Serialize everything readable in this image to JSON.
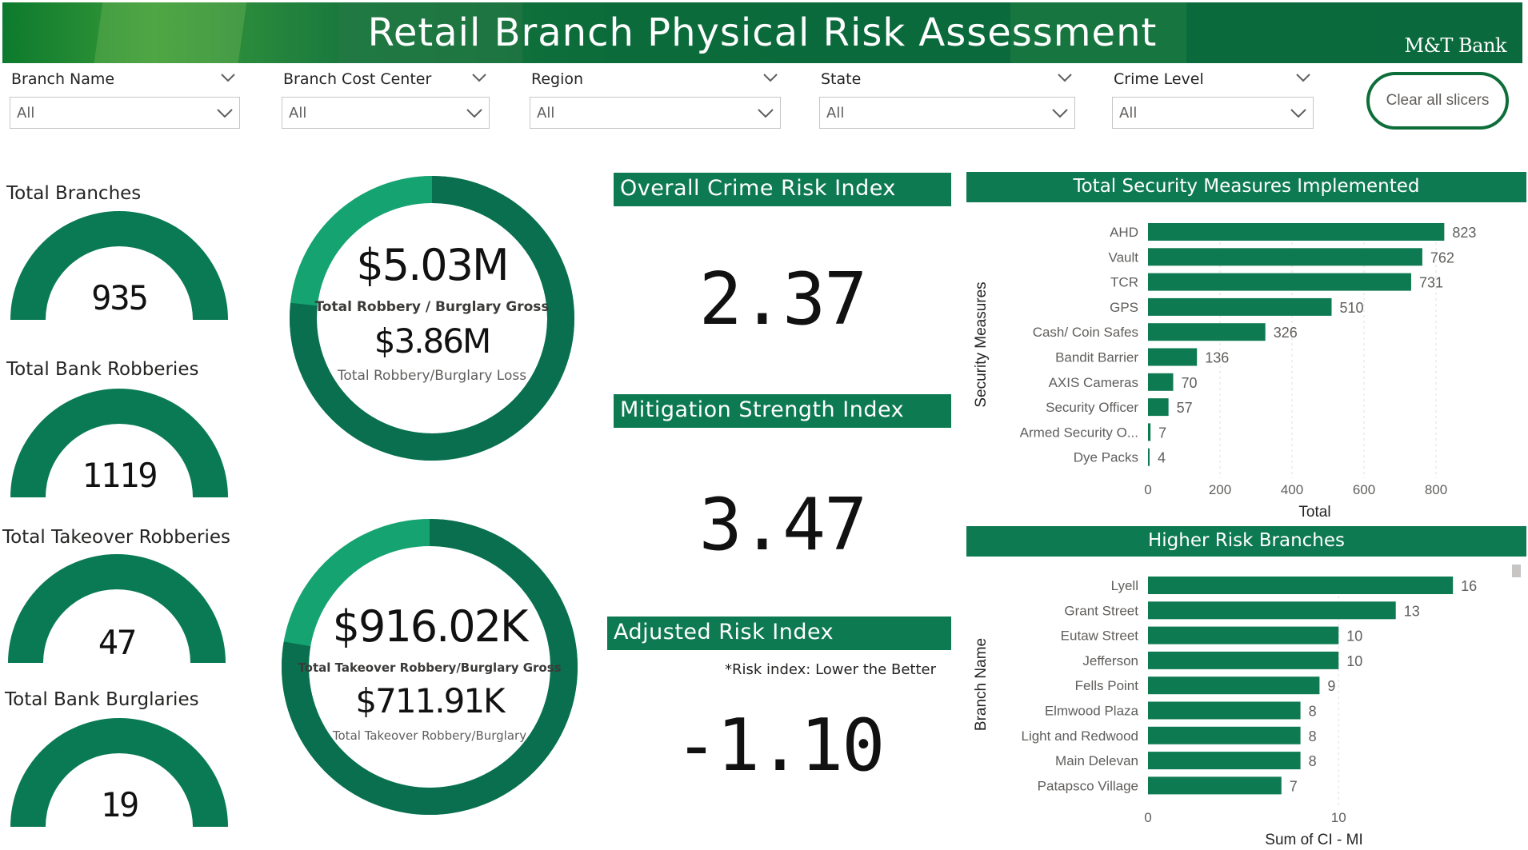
{
  "header": {
    "title": "Retail Branch Physical Risk Assessment",
    "logo_text": "M&T Bank"
  },
  "slicers": [
    {
      "label": "Branch Name",
      "value": "All"
    },
    {
      "label": "Branch Cost Center",
      "value": "All"
    },
    {
      "label": "Region",
      "value": "All"
    },
    {
      "label": "State",
      "value": "All"
    },
    {
      "label": "Crime Level",
      "value": "All"
    }
  ],
  "clear_button": {
    "label": "Clear all slicers"
  },
  "kpis": [
    {
      "label": "Total Branches",
      "value": "935"
    },
    {
      "label": "Total Bank Robberies",
      "value": "1119"
    },
    {
      "label": "Total Takeover Robberies",
      "value": "47"
    },
    {
      "label": "Total Bank Burglaries",
      "value": "19"
    }
  ],
  "donut1": {
    "gross_value": "$5.03M",
    "gross_label": "Total Robbery / Burglary Gross",
    "loss_value": "$3.86M",
    "loss_label": "Total Robbery/Burglary Loss",
    "loss_fraction": 0.767
  },
  "donut2": {
    "gross_value": "$916.02K",
    "gross_label": "Total Takeover Robbery/Burglary Gross",
    "loss_value": "$711.91K",
    "loss_label": "Total Takeover Robbery/Burglary",
    "loss_fraction": 0.777
  },
  "indices": [
    {
      "title": "Overall Crime Risk Index",
      "value": "2.37"
    },
    {
      "title": "Mitigation Strength Index",
      "value": "3.47"
    },
    {
      "title": "Adjusted Risk Index",
      "value": "-1.10"
    }
  ],
  "risk_note": "*Risk index: Lower the Better",
  "colors": {
    "primary": "#0e7a52",
    "dark": "#0a6a4a",
    "light": "#15a372",
    "header_green": "#0c6b3c"
  },
  "chart_data": [
    {
      "type": "bar",
      "orientation": "horizontal",
      "title": "Total Security Measures Implemented",
      "ylabel": "Security Measures",
      "xlabel": "Total",
      "categories": [
        "AHD",
        "Vault",
        "TCR",
        "GPS",
        "Cash/ Coin Safes",
        "Bandit Barrier",
        "AXIS Cameras",
        "Security Officer",
        "Armed Security O...",
        "Dye Packs"
      ],
      "values": [
        823,
        762,
        731,
        510,
        326,
        136,
        70,
        57,
        7,
        4
      ],
      "xlim": [
        0,
        900
      ],
      "xticks": [
        "0",
        "200",
        "400",
        "600",
        "800"
      ],
      "grid": true
    },
    {
      "type": "bar",
      "orientation": "horizontal",
      "title": "Higher Risk Branches",
      "ylabel": "Branch Name",
      "xlabel": "Sum of CI - MI",
      "categories": [
        "Lyell",
        "Grant Street",
        "Eutaw Street",
        "Jefferson",
        "Fells Point",
        "Elmwood Plaza",
        "Light and Redwood",
        "Main Delevan",
        "Patapsco Village"
      ],
      "values": [
        16,
        13,
        10,
        10,
        9,
        8,
        8,
        8,
        7
      ],
      "xlim": [
        0,
        17
      ],
      "xticks": [
        "0",
        "10"
      ],
      "grid": true
    }
  ]
}
